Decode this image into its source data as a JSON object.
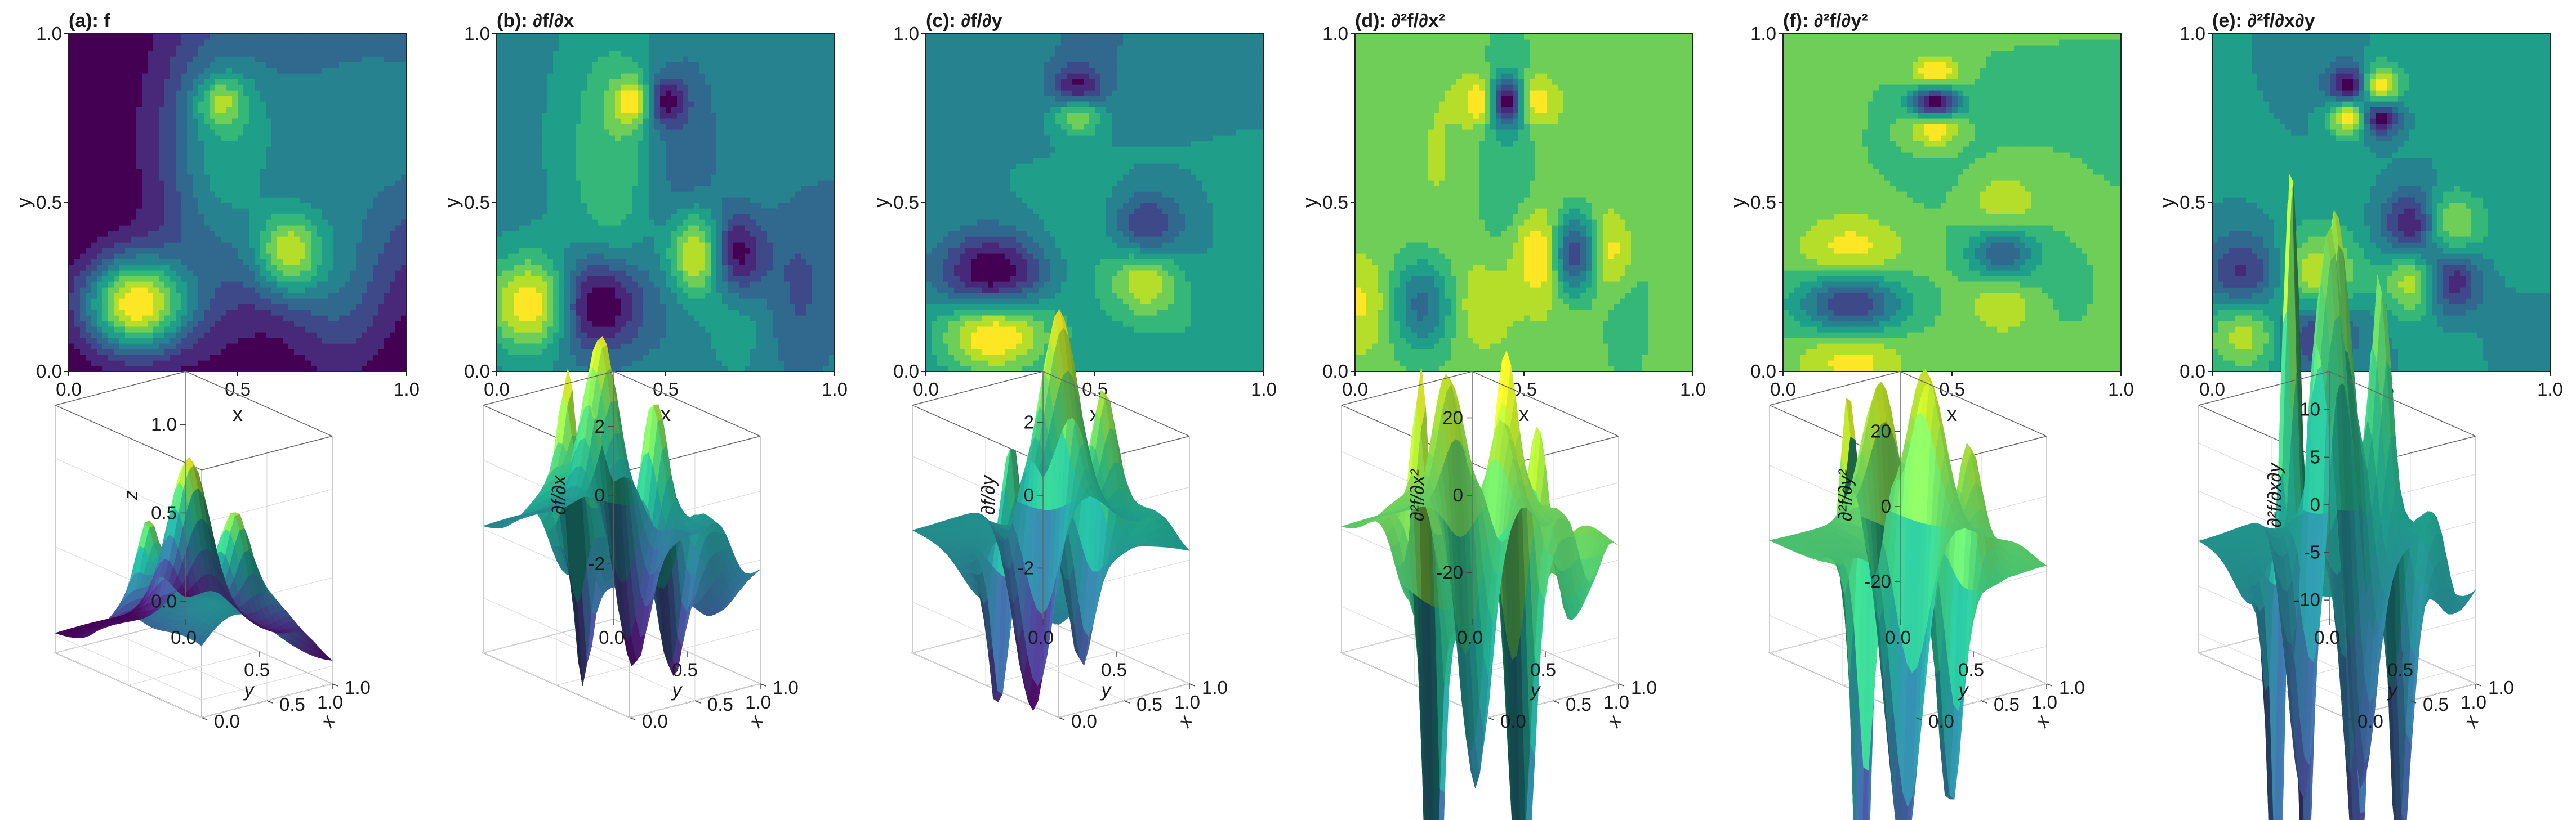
{
  "colormap": [
    "#440154",
    "#482878",
    "#3e4989",
    "#31688e",
    "#26828e",
    "#1f9e89",
    "#35b779",
    "#6ece58",
    "#b5de2b",
    "#fde725"
  ],
  "chart_data": [
    {
      "id": "a",
      "type": "contour",
      "title": "(a): f",
      "xlabel": "x",
      "ylabel": "y",
      "xlim": [
        0,
        1
      ],
      "ylim": [
        0,
        1
      ],
      "xticks": [
        "0.0",
        "0.5",
        "1.0"
      ],
      "yticks": [
        "0.0",
        "0.5",
        "1.0"
      ]
    },
    {
      "id": "b",
      "type": "contour",
      "title": "(b): ∂f/∂x",
      "xlabel": "x",
      "ylabel": "y",
      "xlim": [
        0,
        1
      ],
      "ylim": [
        0,
        1
      ],
      "xticks": [
        "0.0",
        "0.5",
        "1.0"
      ],
      "yticks": [
        "0.0",
        "0.5",
        "1.0"
      ]
    },
    {
      "id": "c",
      "type": "contour",
      "title": "(c): ∂f/∂y",
      "xlabel": "x",
      "ylabel": "y",
      "xlim": [
        0,
        1
      ],
      "ylim": [
        0,
        1
      ],
      "xticks": [
        "0.0",
        "0.5",
        "1.0"
      ],
      "yticks": [
        "0.0",
        "0.5",
        "1.0"
      ]
    },
    {
      "id": "d",
      "type": "contour",
      "title": "(d): ∂²f/∂x²",
      "xlabel": "x",
      "ylabel": "y",
      "xlim": [
        0,
        1
      ],
      "ylim": [
        0,
        1
      ],
      "xticks": [
        "0.0",
        "0.5",
        "1.0"
      ],
      "yticks": [
        "0.0",
        "0.5",
        "1.0"
      ]
    },
    {
      "id": "f",
      "type": "contour",
      "title": "(f): ∂²f/∂y²",
      "xlabel": "x",
      "ylabel": "y",
      "xlim": [
        0,
        1
      ],
      "ylim": [
        0,
        1
      ],
      "xticks": [
        "0.0",
        "0.5",
        "1.0"
      ],
      "yticks": [
        "0.0",
        "0.5",
        "1.0"
      ]
    },
    {
      "id": "e",
      "type": "contour",
      "title": "(e): ∂²f/∂x∂y",
      "xlabel": "x",
      "ylabel": "y",
      "xlim": [
        0,
        1
      ],
      "ylim": [
        0,
        1
      ],
      "xticks": [
        "0.0",
        "0.5",
        "1.0"
      ],
      "yticks": [
        "0.0",
        "0.5",
        "1.0"
      ]
    },
    {
      "id": "a3",
      "type": "surface",
      "zlabel": "z",
      "xlabel": "x",
      "ylabel": "y",
      "xticks": [
        "0.0",
        "0.5",
        "1.0"
      ],
      "yticks": [
        "0.0",
        "0.5",
        "1.0"
      ],
      "zticks": [
        "0.0",
        "0.5",
        "1.0"
      ],
      "zlim": [
        -0.1,
        1.3
      ]
    },
    {
      "id": "b3",
      "type": "surface",
      "zlabel": "∂f/∂x",
      "xlabel": "x",
      "ylabel": "y",
      "xticks": [
        "0.0",
        "0.5",
        "1.0"
      ],
      "yticks": [
        "0.0",
        "0.5",
        "1.0"
      ],
      "zticks": [
        "-2",
        "0",
        "2"
      ],
      "zlim": [
        -3.6,
        3.6
      ]
    },
    {
      "id": "c3",
      "type": "surface",
      "zlabel": "∂f/∂y",
      "xlabel": "x",
      "ylabel": "y",
      "xticks": [
        "0.0",
        "0.5",
        "1.0"
      ],
      "yticks": [
        "0.0",
        "0.5",
        "1.0"
      ],
      "zticks": [
        "-2",
        "0",
        "2"
      ],
      "zlim": [
        -3.4,
        3.4
      ]
    },
    {
      "id": "d3",
      "type": "surface",
      "zlabel": "∂²f/∂x²",
      "xlabel": "x",
      "ylabel": "y",
      "xticks": [
        "0.0",
        "0.5",
        "1.0"
      ],
      "yticks": [
        "0.0",
        "0.5",
        "1.0"
      ],
      "zticks": [
        "-20",
        "0",
        "20"
      ],
      "zlim": [
        -32,
        32
      ]
    },
    {
      "id": "f3",
      "type": "surface",
      "zlabel": "∂²f/∂y²",
      "xlabel": "x",
      "ylabel": "y",
      "xticks": [
        "0.0",
        "0.5",
        "1.0"
      ],
      "yticks": [
        "0.0",
        "0.5",
        "1.0"
      ],
      "zticks": [
        "-20",
        "0",
        "20"
      ],
      "zlim": [
        -30,
        36
      ]
    },
    {
      "id": "e3",
      "type": "surface",
      "zlabel": "∂²f/∂x∂y",
      "xlabel": "x",
      "ylabel": "y",
      "xticks": [
        "0.0",
        "0.5",
        "1.0"
      ],
      "yticks": [
        "0.0",
        "0.5",
        "1.0"
      ],
      "zticks": [
        "-10",
        "-5",
        "0",
        "5",
        "10"
      ],
      "zlim": [
        -12,
        14
      ]
    }
  ]
}
